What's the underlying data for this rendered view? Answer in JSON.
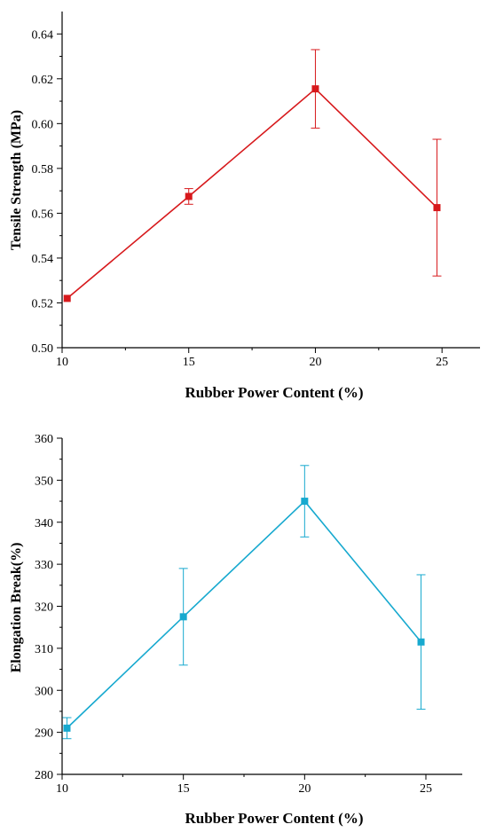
{
  "chart_data": [
    {
      "type": "line",
      "color": "#d7191c",
      "marker": "square",
      "x": [
        10.2,
        15,
        20,
        24.8
      ],
      "y": [
        0.522,
        0.5675,
        0.6155,
        0.5625
      ],
      "error": [
        0,
        0.0035,
        0.0175,
        0.0305
      ],
      "xlim": [
        10,
        26.5
      ],
      "ylim": [
        0.5,
        0.65
      ],
      "xticks": [
        10,
        15,
        20,
        25
      ],
      "xtick_labels": [
        "10",
        "15",
        "20",
        "25"
      ],
      "yticks": [
        0.5,
        0.52,
        0.54,
        0.56,
        0.58,
        0.6,
        0.62,
        0.64
      ],
      "ytick_labels": [
        "0.50",
        "0.52",
        "0.54",
        "0.56",
        "0.58",
        "0.60",
        "0.62",
        "0.64"
      ],
      "xlabel": "Rubber Power Content (%)",
      "ylabel": "Tensile Strength (MPa)",
      "grid": false
    },
    {
      "type": "line",
      "color": "#17a9cf",
      "marker": "square",
      "x": [
        10.2,
        15,
        20,
        24.8
      ],
      "y": [
        291,
        317.5,
        345,
        311.5
      ],
      "error": [
        2.5,
        11.5,
        8.5,
        16
      ],
      "xlim": [
        10,
        26.5
      ],
      "ylim": [
        280,
        360
      ],
      "xticks": [
        10,
        15,
        20,
        25
      ],
      "xtick_labels": [
        "10",
        "15",
        "20",
        "25"
      ],
      "yticks": [
        280,
        290,
        300,
        310,
        320,
        330,
        340,
        350,
        360
      ],
      "ytick_labels": [
        "280",
        "290",
        "300",
        "310",
        "320",
        "330",
        "340",
        "350",
        "360"
      ],
      "xlabel": "Rubber Power Content (%)",
      "ylabel": "Elongation  Break(%)",
      "grid": false
    }
  ]
}
